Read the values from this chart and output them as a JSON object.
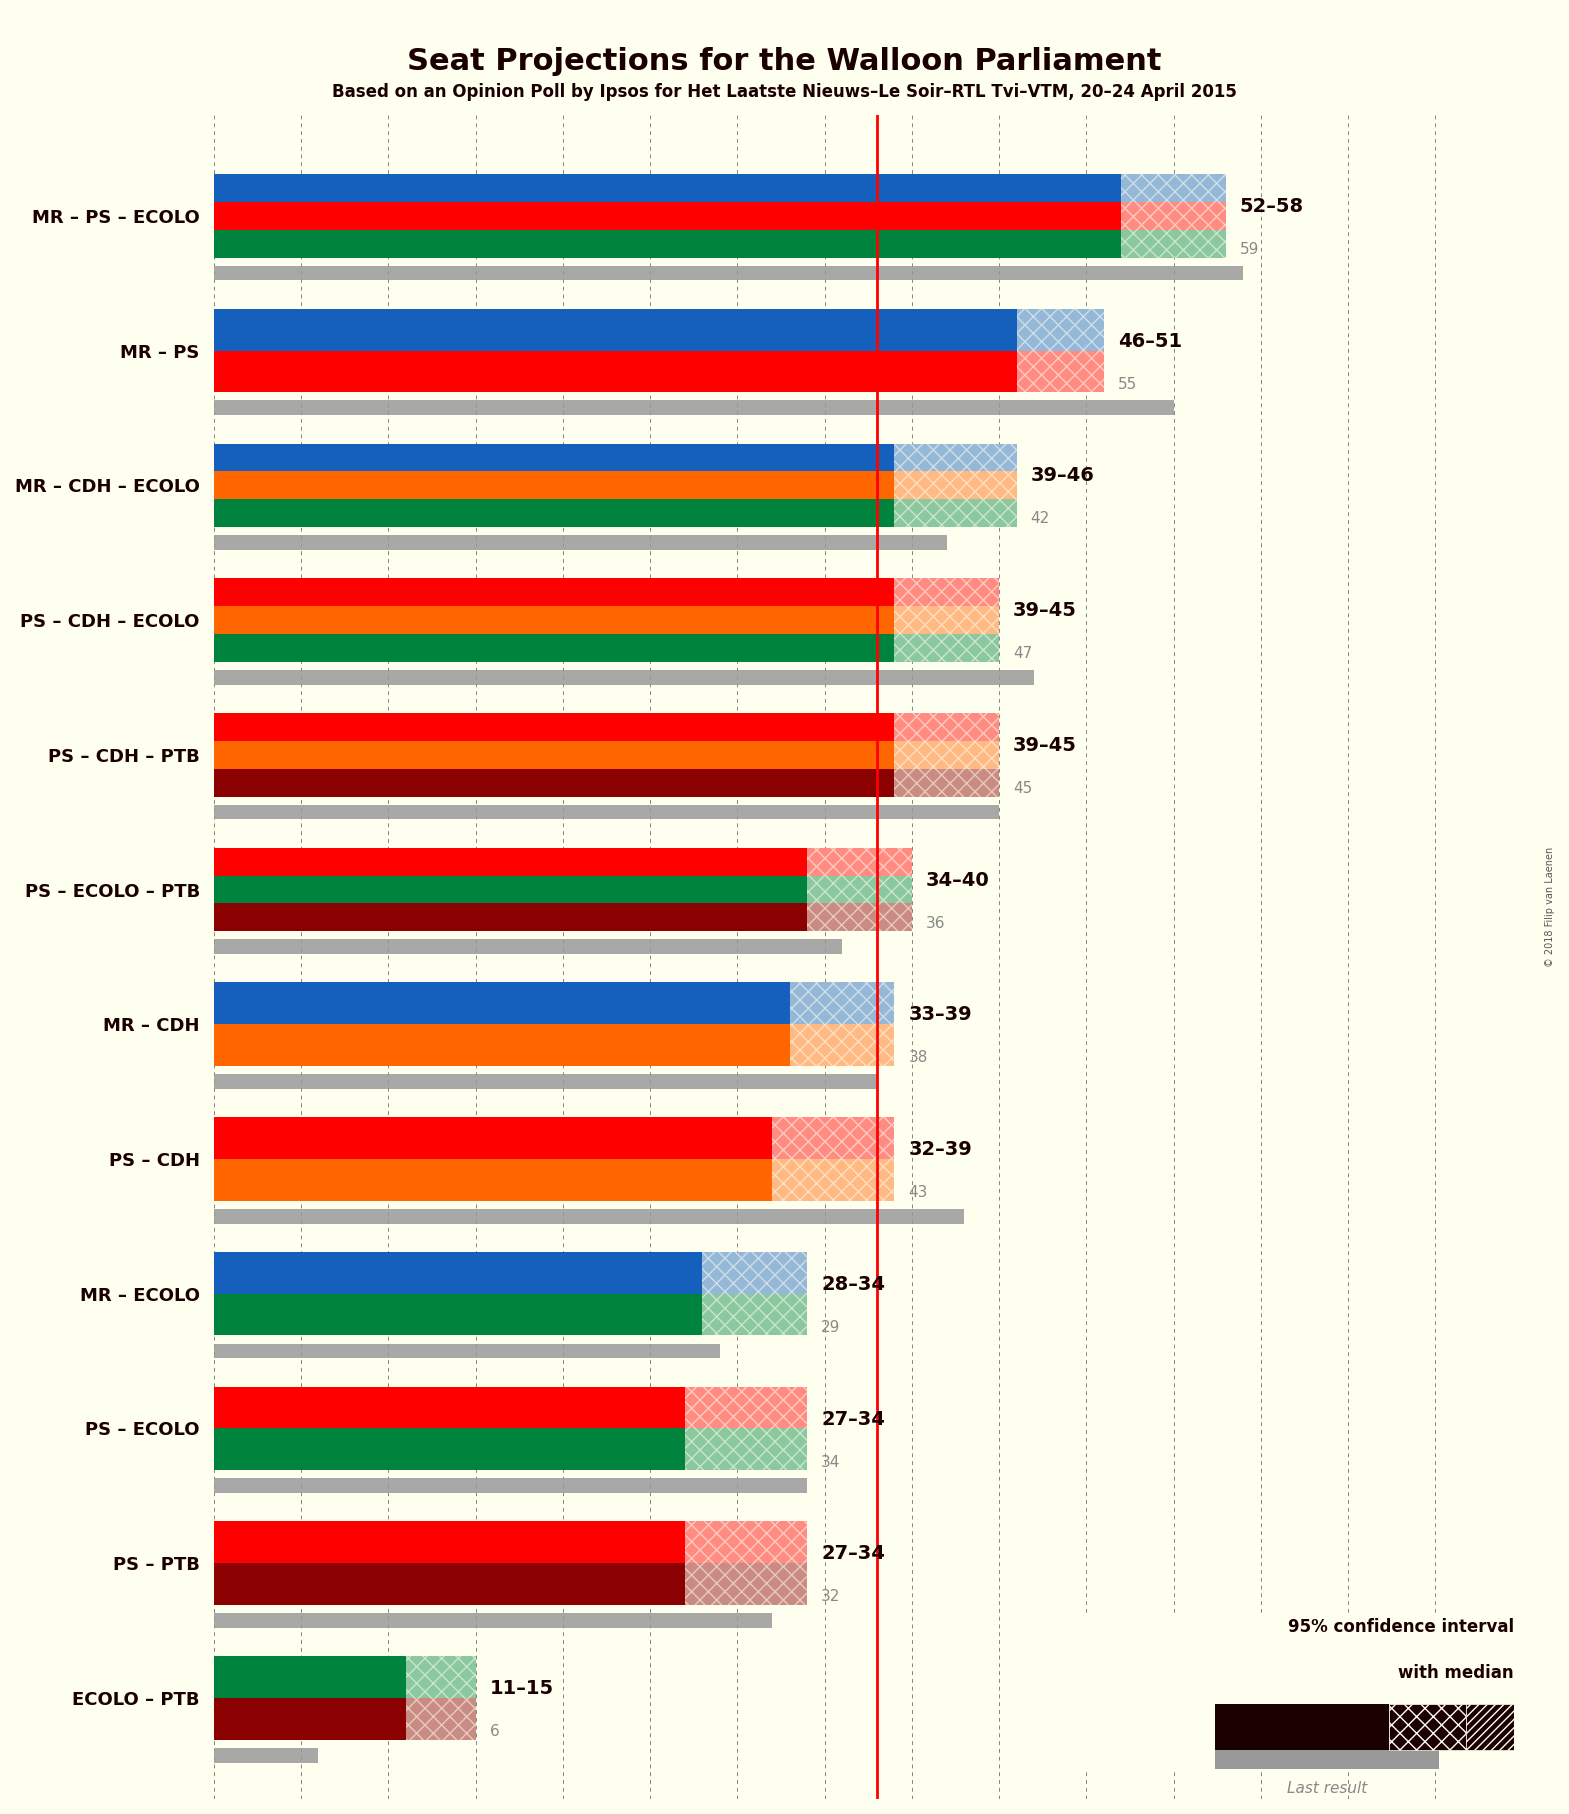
{
  "title": "Seat Projections for the Walloon Parliament",
  "subtitle": "Based on an Opinion Poll by Ipsos for Het Laatste Nieuws–Le Soir–RTL Tvi–VTM, 20–24 April 2015",
  "background_color": "#FFFFF0",
  "majority_line": 38,
  "x_max": 75,
  "tick_interval": 5,
  "coalitions": [
    {
      "label": "MR – PS – ECOLO",
      "parties": [
        "MR",
        "PS",
        "ECOLO"
      ],
      "colors": [
        "#1560BD",
        "#FF0000",
        "#00843D"
      ],
      "ci_low": 52,
      "ci_high": 58,
      "last_result": 59,
      "ci_label": "52–58",
      "last_label": "59"
    },
    {
      "label": "MR – PS",
      "parties": [
        "MR",
        "PS"
      ],
      "colors": [
        "#1560BD",
        "#FF0000"
      ],
      "ci_low": 46,
      "ci_high": 51,
      "last_result": 55,
      "ci_label": "46–51",
      "last_label": "55"
    },
    {
      "label": "MR – CDH – ECOLO",
      "parties": [
        "MR",
        "CDH",
        "ECOLO"
      ],
      "colors": [
        "#1560BD",
        "#FF6600",
        "#00843D"
      ],
      "ci_low": 39,
      "ci_high": 46,
      "last_result": 42,
      "ci_label": "39–46",
      "last_label": "42"
    },
    {
      "label": "PS – CDH – ECOLO",
      "parties": [
        "PS",
        "CDH",
        "ECOLO"
      ],
      "colors": [
        "#FF0000",
        "#FF6600",
        "#00843D"
      ],
      "ci_low": 39,
      "ci_high": 45,
      "last_result": 47,
      "ci_label": "39–45",
      "last_label": "47"
    },
    {
      "label": "PS – CDH – PTB",
      "parties": [
        "PS",
        "CDH",
        "PTB"
      ],
      "colors": [
        "#FF0000",
        "#FF6600",
        "#8B0000"
      ],
      "ci_low": 39,
      "ci_high": 45,
      "last_result": 45,
      "ci_label": "39–45",
      "last_label": "45"
    },
    {
      "label": "PS – ECOLO – PTB",
      "parties": [
        "PS",
        "ECOLO",
        "PTB"
      ],
      "colors": [
        "#FF0000",
        "#00843D",
        "#8B0000"
      ],
      "ci_low": 34,
      "ci_high": 40,
      "last_result": 36,
      "ci_label": "34–40",
      "last_label": "36"
    },
    {
      "label": "MR – CDH",
      "parties": [
        "MR",
        "CDH"
      ],
      "colors": [
        "#1560BD",
        "#FF6600"
      ],
      "ci_low": 33,
      "ci_high": 39,
      "last_result": 38,
      "ci_label": "33–39",
      "last_label": "38"
    },
    {
      "label": "PS – CDH",
      "parties": [
        "PS",
        "CDH"
      ],
      "colors": [
        "#FF0000",
        "#FF6600"
      ],
      "ci_low": 32,
      "ci_high": 39,
      "last_result": 43,
      "ci_label": "32–39",
      "last_label": "43"
    },
    {
      "label": "MR – ECOLO",
      "parties": [
        "MR",
        "ECOLO"
      ],
      "colors": [
        "#1560BD",
        "#00843D"
      ],
      "ci_low": 28,
      "ci_high": 34,
      "last_result": 29,
      "ci_label": "28–34",
      "last_label": "29"
    },
    {
      "label": "PS – ECOLO",
      "parties": [
        "PS",
        "ECOLO"
      ],
      "colors": [
        "#FF0000",
        "#00843D"
      ],
      "ci_low": 27,
      "ci_high": 34,
      "last_result": 34,
      "ci_label": "27–34",
      "last_label": "34"
    },
    {
      "label": "PS – PTB",
      "parties": [
        "PS",
        "PTB"
      ],
      "colors": [
        "#FF0000",
        "#8B0000"
      ],
      "ci_low": 27,
      "ci_high": 34,
      "last_result": 32,
      "ci_label": "27–34",
      "last_label": "32"
    },
    {
      "label": "ECOLO – PTB",
      "parties": [
        "ECOLO",
        "PTB"
      ],
      "colors": [
        "#00843D",
        "#8B0000"
      ],
      "ci_low": 11,
      "ci_high": 15,
      "last_result": 6,
      "ci_label": "11–15",
      "last_label": "6"
    }
  ],
  "gray_color": "#999999",
  "legend_ci_text": "95% confidence interval",
  "legend_median_text": "with median",
  "legend_last_text": "Last result",
  "copyright": "© 2018 Filip van Laenen"
}
